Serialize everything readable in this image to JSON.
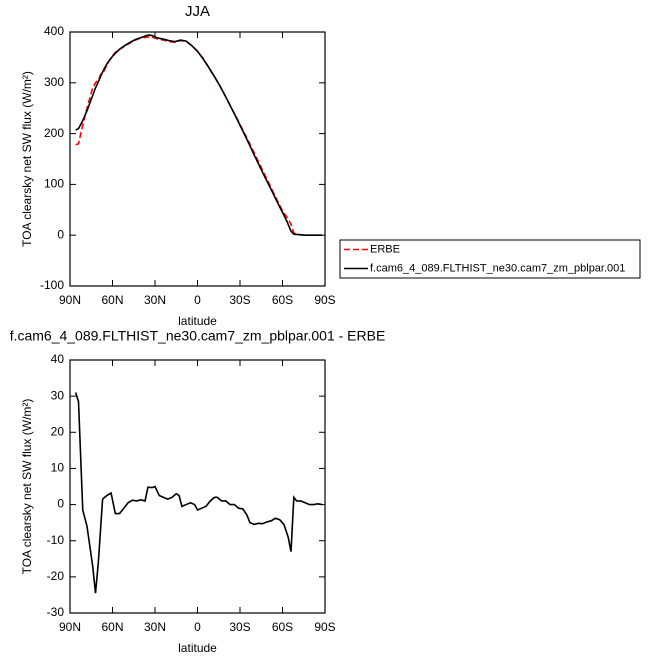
{
  "chart_data": [
    {
      "type": "line",
      "title": "JJA",
      "xlabel": "latitude",
      "ylabel": "TOA clearsky net SW flux (W/m²)",
      "x": [
        86,
        84,
        82,
        80,
        78,
        76,
        74,
        72,
        70,
        68,
        66,
        64,
        62,
        60,
        58,
        55,
        52,
        48,
        44,
        40,
        36,
        34,
        32,
        28,
        24,
        20,
        16,
        12,
        8,
        4,
        0,
        -4,
        -8,
        -12,
        -16,
        -20,
        -24,
        -28,
        -32,
        -36,
        -40,
        -44,
        -48,
        -52,
        -56,
        -60,
        -63,
        -66,
        -68,
        -72,
        -76,
        -80,
        -84,
        -88
      ],
      "series": [
        {
          "name": "ERBE",
          "color": "#ff0000",
          "dashed": true,
          "values": [
            178,
            180,
            205,
            228,
            250,
            270,
            290,
            300,
            306,
            318,
            323,
            335,
            345,
            353,
            360,
            366,
            371,
            378,
            384,
            388,
            390,
            390,
            390,
            386,
            384,
            381,
            380,
            383,
            382,
            373,
            362,
            348,
            330,
            312,
            293,
            272,
            250,
            229,
            207,
            185,
            162,
            139,
            116,
            93,
            70,
            48,
            36,
            22,
            4,
            1,
            0,
            0,
            0,
            0
          ]
        },
        {
          "name": "f.cam6_4_089.FLTHIST_ne30.cam7_zm_pblpar.001",
          "color": "#000000",
          "dashed": false,
          "values": [
            207,
            210,
            220,
            232,
            245,
            260,
            275,
            290,
            302,
            315,
            327,
            337,
            345,
            352,
            358,
            366,
            372,
            379,
            385,
            389,
            393,
            394,
            393,
            388,
            386,
            383,
            381,
            384,
            382,
            373,
            362,
            347,
            330,
            312,
            293,
            272,
            250,
            228,
            205,
            182,
            158,
            135,
            112,
            90,
            67,
            45,
            28,
            8,
            2,
            1,
            0,
            0,
            0,
            0
          ]
        }
      ],
      "xlim": [
        90,
        -90
      ],
      "xticks": [
        {
          "value": 90,
          "label": "90N"
        },
        {
          "value": 60,
          "label": "60N"
        },
        {
          "value": 30,
          "label": "30N"
        },
        0,
        {
          "value": -30,
          "label": "30S"
        },
        {
          "value": -60,
          "label": "60S"
        },
        {
          "value": -90,
          "label": "90S"
        }
      ],
      "ylim": [
        -100,
        400
      ],
      "yticks": [
        -100,
        0,
        100,
        200,
        300,
        400
      ],
      "legend": "right"
    },
    {
      "type": "line",
      "title": "f.cam6_4_089.FLTHIST_ne30.cam7_zm_pblpar.001 - ERBE",
      "xlabel": "latitude",
      "ylabel": "TOA clearsky net SW flux (W/m²)",
      "x": [
        86,
        84,
        81,
        78,
        74,
        72,
        70,
        67,
        64,
        61,
        58,
        55,
        52,
        49,
        46,
        43,
        40,
        37,
        35,
        32,
        30,
        27,
        24,
        21,
        18,
        15,
        13,
        11,
        8,
        5,
        2,
        0,
        -3,
        -6,
        -9,
        -12,
        -14,
        -17,
        -20,
        -23,
        -26,
        -29,
        -32,
        -35,
        -37,
        -40,
        -43,
        -46,
        -49,
        -52,
        -55,
        -58,
        -61,
        -64,
        -66,
        -68,
        -70,
        -73,
        -76,
        -79,
        -82,
        -85,
        -88
      ],
      "values": [
        31,
        28.5,
        -1.5,
        -6,
        -17,
        -24.5,
        -16,
        1.5,
        2.5,
        3.2,
        -2.5,
        -2.5,
        -1,
        0.5,
        1.2,
        1,
        1.3,
        1,
        4.8,
        4.7,
        5,
        2.5,
        2,
        1.5,
        2,
        3,
        2.5,
        -0.5,
        0,
        0.5,
        0,
        -1.5,
        -1,
        -0.5,
        1,
        2,
        2,
        1,
        1,
        0,
        0,
        -1,
        -1.2,
        -3,
        -5,
        -5.5,
        -5.2,
        -5.3,
        -4.8,
        -4.5,
        -3.8,
        -4.2,
        -5.5,
        -9,
        -13,
        2,
        1,
        1,
        0.5,
        0,
        0,
        0.2,
        0
      ],
      "color": "#000000",
      "xlim": [
        90,
        -90
      ],
      "xticks": [
        {
          "value": 90,
          "label": "90N"
        },
        {
          "value": 60,
          "label": "60N"
        },
        {
          "value": 30,
          "label": "30N"
        },
        0,
        {
          "value": -30,
          "label": "30S"
        },
        {
          "value": -60,
          "label": "60S"
        },
        {
          "value": -90,
          "label": "90S"
        }
      ],
      "ylim": [
        -30,
        40
      ],
      "yticks": [
        -30,
        -20,
        -10,
        0,
        10,
        20,
        30,
        40
      ]
    }
  ]
}
